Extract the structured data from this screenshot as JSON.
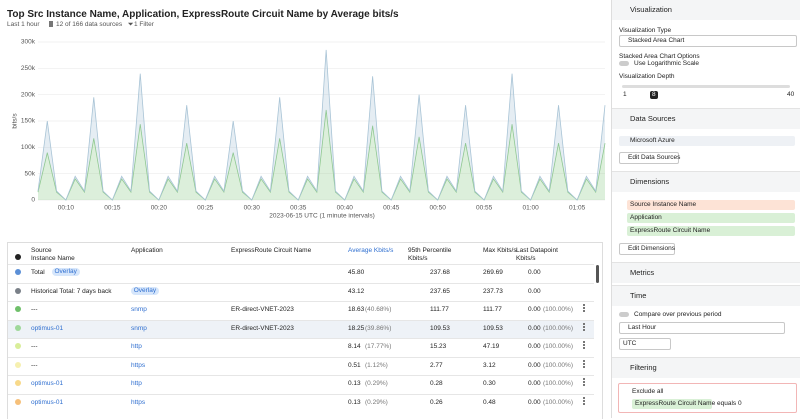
{
  "header": {
    "title": "Top Src Instance Name, Application, ExpressRoute Circuit Name by Average bits/s",
    "time_range": "Last 1 hour",
    "sources": "12 of 166 data sources",
    "filter": "1 Filter"
  },
  "chart_data": {
    "type": "area",
    "stacked": true,
    "xlabel": "2023-06-15 UTC (1 minute intervals)",
    "ylabel": "bits/s",
    "categories": [
      null,
      null,
      null,
      "00:10",
      null,
      null,
      null,
      null,
      "00:15",
      null,
      null,
      null,
      null,
      "00:20",
      null,
      null,
      null,
      null,
      "00:25",
      null,
      null,
      null,
      null,
      "00:30",
      null,
      null,
      null,
      null,
      "00:35",
      null,
      null,
      null,
      null,
      "00:40",
      null,
      null,
      null,
      null,
      "00:45",
      null,
      null,
      null,
      null,
      "00:50",
      null,
      null,
      null,
      null,
      "00:55",
      null,
      null,
      null,
      null,
      "01:00",
      null,
      null,
      null,
      null,
      "01:05",
      null,
      null,
      null
    ],
    "series": [
      {
        "name": "snmp",
        "color": "#8cc987",
        "values": [
          15000,
          90000,
          15000,
          0,
          40000,
          15000,
          117000,
          15000,
          0,
          40000,
          15000,
          144000,
          15000,
          0,
          40000,
          15000,
          108000,
          15000,
          0,
          40000,
          15000,
          90000,
          15000,
          0,
          40000,
          15000,
          117000,
          15000,
          0,
          40000,
          15000,
          171000,
          15000,
          0,
          40000,
          15000,
          141000,
          15000,
          0,
          40000,
          15000,
          120000,
          15000,
          0,
          40000,
          15000,
          108000,
          15000,
          0,
          40000,
          15000,
          144000,
          15000,
          0,
          40000,
          15000,
          108000,
          15000,
          0,
          40000,
          15000,
          108000
        ]
      },
      {
        "name": "http",
        "color": "#a9c4d6",
        "values": [
          2000,
          60000,
          2000,
          0,
          5000,
          2000,
          78000,
          2000,
          0,
          5000,
          2000,
          96000,
          2000,
          0,
          5000,
          2000,
          72000,
          2000,
          0,
          5000,
          2000,
          60000,
          2000,
          0,
          5000,
          2000,
          78000,
          2000,
          0,
          5000,
          2000,
          114000,
          2000,
          0,
          5000,
          2000,
          94000,
          2000,
          0,
          5000,
          2000,
          80000,
          2000,
          0,
          5000,
          2000,
          72000,
          2000,
          0,
          5000,
          2000,
          96000,
          2000,
          0,
          5000,
          2000,
          72000,
          2000,
          0,
          5000,
          2000,
          72000
        ]
      }
    ],
    "ylim": [
      0,
      300000
    ],
    "yticks": [
      0,
      {
        "value": 50000,
        "label": "50k"
      },
      {
        "value": 100000,
        "label": "100k"
      },
      {
        "value": 150000,
        "label": "150k"
      },
      {
        "value": 200000,
        "label": "200k"
      },
      {
        "value": 250000,
        "label": "250k"
      },
      {
        "value": 300000,
        "label": "300k"
      }
    ],
    "grid": true
  },
  "table": {
    "columns": [
      "Source Instance Name",
      "Application",
      "ExpressRoute Circuit Name",
      "Average Kbits/s",
      "95th Percentile Kbits/s",
      "Max Kbits/s",
      "Last Datapoint Kbits/s"
    ],
    "rows": [
      {
        "name": "Total",
        "badge": "Overlay",
        "avg": "45.80",
        "p95": "237.68",
        "max": "269.69",
        "last": "0.00",
        "color": "#5b8fd6"
      },
      {
        "name": "Historical Total: 7 days back",
        "badge": "Overlay",
        "avg": "43.12",
        "p95": "237.65",
        "max": "237.73",
        "last": "0.00",
        "color": "#7a8088"
      },
      {
        "name": "---",
        "app": "snmp",
        "circuit": "ER-direct-VNET-2023",
        "avg": "18.63",
        "pct": "(40.68%)",
        "p95": "111.77",
        "max": "111.77",
        "last": "0.00",
        "last_pct": "(100.00%)",
        "color": "#6fbf6a"
      },
      {
        "name": "optimus-01",
        "app": "snmp",
        "circuit": "ER-direct-VNET-2023",
        "avg": "18.25",
        "pct": "(39.86%)",
        "p95": "109.53",
        "max": "109.53",
        "last": "0.00",
        "last_pct": "(100.00%)",
        "color": "#9fd89a"
      },
      {
        "name": "---",
        "app": "http",
        "avg": "8.14",
        "pct": "(17.77%)",
        "p95": "15.23",
        "max": "47.19",
        "last": "0.00",
        "last_pct": "(100.00%)",
        "color": "#d9ee9a"
      },
      {
        "name": "---",
        "app": "https",
        "avg": "0.51",
        "pct": "(1.12%)",
        "p95": "2.77",
        "max": "3.12",
        "last": "0.00",
        "last_pct": "(100.00%)",
        "color": "#f6f0b0"
      },
      {
        "name": "optimus-01",
        "app": "http",
        "avg": "0.13",
        "pct": "(0.29%)",
        "p95": "0.28",
        "max": "0.30",
        "last": "0.00",
        "last_pct": "(100.00%)",
        "color": "#f8d98a"
      },
      {
        "name": "optimus-01",
        "app": "https",
        "avg": "0.13",
        "pct": "(0.29%)",
        "p95": "0.26",
        "max": "0.48",
        "last": "0.00",
        "last_pct": "(100.00%)",
        "color": "#f6c07a"
      }
    ]
  },
  "sidebar": {
    "visualization": {
      "title": "Visualization",
      "type_label": "Visualization Type",
      "type": "Stacked Area Chart",
      "options_label": "Stacked Area Chart Options",
      "log_label": "Use Logarithmic Scale",
      "depth_label": "Visualization Depth",
      "depth_min": "1",
      "depth": "8",
      "depth_max": "40"
    },
    "data_sources": {
      "title": "Data Sources",
      "source": "Microsoft Azure",
      "button": "Edit Data Sources"
    },
    "dimensions": {
      "title": "Dimensions",
      "items": [
        "Source Instance Name",
        "Application",
        "ExpressRoute Circuit Name"
      ],
      "button": "Edit Dimensions"
    },
    "metrics": {
      "title": "Metrics"
    },
    "time": {
      "title": "Time",
      "compare": "Compare over previous period",
      "range": "Last Hour",
      "zone": "UTC"
    },
    "filtering": {
      "title": "Filtering",
      "exclude": "Exclude all",
      "field": "ExpressRoute Circuit Name",
      "condition": "equals 0"
    }
  }
}
